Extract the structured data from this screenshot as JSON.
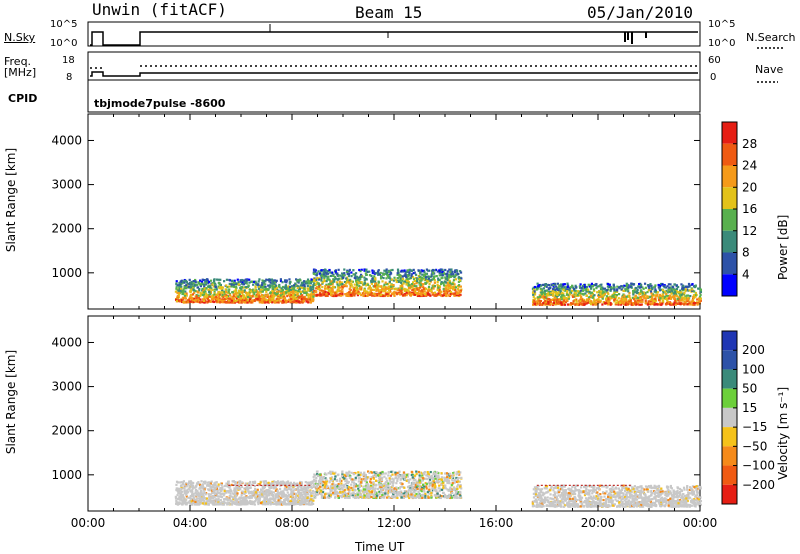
{
  "header": {
    "station": "Unwin (fitACF)",
    "beam": "Beam 15",
    "date": "05/Jan/2010"
  },
  "top_panels": {
    "nsky_label": "N.Sky",
    "nsky_ticks": [
      "10^5",
      "10^0"
    ],
    "nsearch_label": "N.Search",
    "nsearch_ticks": [
      "10^5",
      "10^0"
    ],
    "freq_label_1": "Freq.",
    "freq_label_2": "[MHz]",
    "freq_ticks": [
      "18",
      "8"
    ],
    "nave_label": "Nave",
    "nave_ticks": [
      "60",
      "0"
    ],
    "cpid_label": "CPID",
    "cpid_text": "tbjmode7pulse  -8600"
  },
  "colors": {
    "power_scale": [
      "#0000ff",
      "#2d52a8",
      "#3a8a7a",
      "#58b04e",
      "#e3c21a",
      "#f59a1a",
      "#ef5a12",
      "#e61e14"
    ],
    "velocity_scale": [
      "#e61e14",
      "#f05a12",
      "#f58a1a",
      "#f5c21a",
      "#c8c8c8",
      "#6ccf3a",
      "#3a8a7a",
      "#2d52a8",
      "#1f36b4"
    ]
  },
  "chart_data": [
    {
      "type": "heatmap",
      "title": "",
      "xlabel": "Time UT",
      "ylabel": "Slant Range [km]",
      "x_ticks": [
        "00:00",
        "04:00",
        "08:00",
        "12:00",
        "16:00",
        "20:00",
        "00:00"
      ],
      "y_ticks": [
        "1000",
        "2000",
        "3000",
        "4000"
      ],
      "xlim": [
        0,
        24
      ],
      "ylim": [
        180,
        4600
      ],
      "colorbar": {
        "label": "Power [dB]",
        "ticks": [
          "4",
          "8",
          "12",
          "16",
          "20",
          "24",
          "28"
        ],
        "range": [
          0,
          30
        ]
      },
      "regions": [
        {
          "t_start": 3.4,
          "t_end": 8.8,
          "r_min": 350,
          "r_max": 880,
          "level": "low-to-high"
        },
        {
          "t_start": 8.8,
          "t_end": 14.6,
          "r_min": 500,
          "r_max": 1100,
          "level": "mixed"
        },
        {
          "t_start": 17.4,
          "t_end": 24.0,
          "r_min": 300,
          "r_max": 780,
          "level": "low-to-high"
        }
      ]
    },
    {
      "type": "heatmap",
      "title": "",
      "xlabel": "Time UT",
      "ylabel": "Slant Range [km]",
      "x_ticks": [
        "00:00",
        "04:00",
        "08:00",
        "12:00",
        "16:00",
        "20:00",
        "00:00"
      ],
      "y_ticks": [
        "1000",
        "2000",
        "3000",
        "4000"
      ],
      "xlim": [
        0,
        24
      ],
      "ylim": [
        180,
        4600
      ],
      "colorbar": {
        "label": "Velocity [m s⁻¹]",
        "ticks": [
          "200",
          "100",
          "50",
          "15",
          "−15",
          "−50",
          "−100",
          "−200"
        ],
        "range": [
          -250,
          250
        ]
      },
      "regions": [
        {
          "t_start": 3.4,
          "t_end": 8.8,
          "r_min": 350,
          "r_max": 880,
          "level": "ground-scatter"
        },
        {
          "t_start": 8.8,
          "t_end": 14.6,
          "r_min": 500,
          "r_max": 1100,
          "level": "mixed"
        },
        {
          "t_start": 17.4,
          "t_end": 24.0,
          "r_min": 300,
          "r_max": 780,
          "level": "ground-scatter"
        }
      ]
    }
  ]
}
